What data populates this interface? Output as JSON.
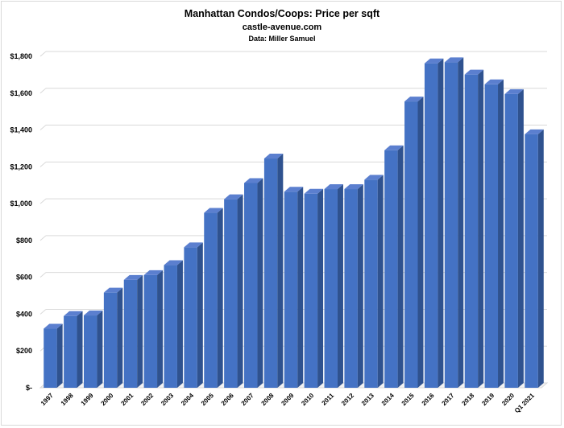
{
  "chart_data": {
    "type": "bar",
    "title": "Manhattan Condos/Coops: Price per sqft",
    "subtitle": "castle-avenue.com",
    "source": "Data: Miller Samuel",
    "categories": [
      "1997",
      "1998",
      "1999",
      "2000",
      "2001",
      "2002",
      "2003",
      "2004",
      "2005",
      "2006",
      "2007",
      "2008",
      "2009",
      "2010",
      "2011",
      "2012",
      "2013",
      "2014",
      "2015",
      "2016",
      "2017",
      "2018",
      "2019",
      "2020",
      "Q1 2021"
    ],
    "values": [
      321,
      390,
      393,
      517,
      586,
      612,
      666,
      763,
      950,
      1024,
      1112,
      1245,
      1065,
      1054,
      1079,
      1079,
      1130,
      1290,
      1555,
      1762,
      1768,
      1701,
      1648,
      1595,
      1377
    ],
    "ylim": [
      0,
      1800
    ],
    "yticks": [
      0,
      200,
      400,
      600,
      800,
      1000,
      1200,
      1400,
      1600,
      1800
    ],
    "ytick_labels": [
      "$-",
      "$200",
      "$400",
      "$600",
      "$800",
      "$1,000",
      "$1,200",
      "$1,400",
      "$1,600",
      "$1,800"
    ],
    "xlabel": "",
    "ylabel": "",
    "grid": true,
    "bar_color": "#4472c4",
    "bar_side_color": "#2f528f",
    "bar_top_color": "#5b7fcf"
  }
}
